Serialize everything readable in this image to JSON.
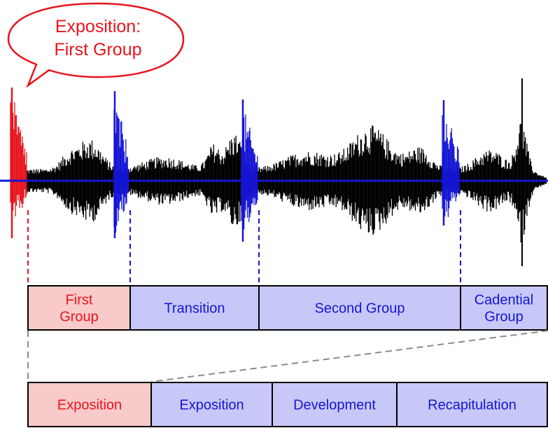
{
  "speech_bubble": {
    "line1": "Exposition:",
    "line2": "First Group"
  },
  "sections_row": [
    {
      "lines": [
        "First",
        "Group"
      ],
      "highlight": true
    },
    {
      "lines": [
        "Transition"
      ],
      "highlight": false
    },
    {
      "lines": [
        "Second Group"
      ],
      "highlight": false
    },
    {
      "lines": [
        "Cadential",
        "Group"
      ],
      "highlight": false
    }
  ],
  "form_row": [
    {
      "label": "Exposition",
      "highlight": true
    },
    {
      "label": "Exposition",
      "highlight": false
    },
    {
      "label": "Development",
      "highlight": false
    },
    {
      "label": "Recapitulation",
      "highlight": false
    }
  ],
  "colors": {
    "highlight_text": "#e8141c",
    "highlight_fill": "#f9caca",
    "normal_text": "#1515d6",
    "normal_fill": "#c8c8f8",
    "waveform": "#000000",
    "axis": "#1515d6",
    "connector_gray": "#8a8a8a"
  }
}
